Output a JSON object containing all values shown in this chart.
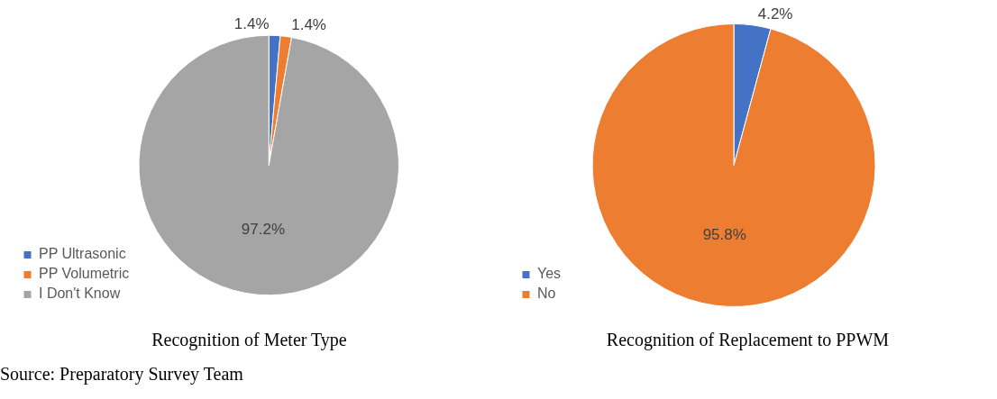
{
  "chart_data": [
    {
      "type": "pie",
      "title": "Recognition of Meter Type",
      "categories": [
        "PP Ultrasonic",
        "PP Volumetric",
        "I Don't Know"
      ],
      "values": [
        1.4,
        1.4,
        97.2
      ],
      "colors": [
        "#4472c4",
        "#ed7d31",
        "#a5a5a5"
      ],
      "value_labels": [
        "1.4%",
        "1.4%",
        "97.2%"
      ],
      "legend": "bottom left",
      "annotations": [
        "Source: Preparatory Survey Team"
      ]
    },
    {
      "type": "pie",
      "title": "Recognition of Replacement to PPWM",
      "categories": [
        "Yes",
        "No"
      ],
      "values": [
        4.2,
        95.8
      ],
      "colors": [
        "#4472c4",
        "#ed7d31"
      ],
      "value_labels": [
        "4.2%",
        "95.8%"
      ],
      "legend": "bottom left"
    }
  ]
}
